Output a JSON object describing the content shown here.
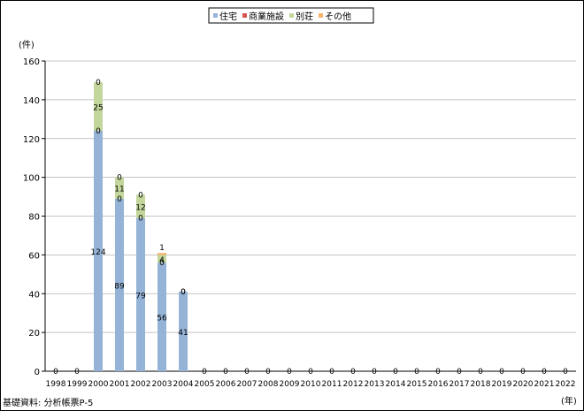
{
  "chart_data": {
    "type": "bar",
    "stacked": true,
    "categories": [
      "1998",
      "1999",
      "2000",
      "2001",
      "2002",
      "2003",
      "2004",
      "2005",
      "2006",
      "2007",
      "2008",
      "2009",
      "2010",
      "2011",
      "2012",
      "2013",
      "2014",
      "2015",
      "2016",
      "2017",
      "2018",
      "2019",
      "2020",
      "2021",
      "2022"
    ],
    "series": [
      {
        "name": "住宅",
        "color": "#95b3d7",
        "values": [
          0,
          0,
          124,
          89,
          79,
          56,
          41,
          0,
          0,
          0,
          0,
          0,
          0,
          0,
          0,
          0,
          0,
          0,
          0,
          0,
          0,
          0,
          0,
          0,
          0
        ]
      },
      {
        "name": "商業施設",
        "color": "#d9534f",
        "values": [
          0,
          0,
          0,
          0,
          0,
          0,
          0,
          0,
          0,
          0,
          0,
          0,
          0,
          0,
          0,
          0,
          0,
          0,
          0,
          0,
          0,
          0,
          0,
          0,
          0
        ]
      },
      {
        "name": "別荘",
        "color": "#c3d69b",
        "values": [
          0,
          0,
          25,
          11,
          12,
          4,
          0,
          0,
          0,
          0,
          0,
          0,
          0,
          0,
          0,
          0,
          0,
          0,
          0,
          0,
          0,
          0,
          0,
          0,
          0
        ]
      },
      {
        "name": "その他",
        "color": "#f7b46b",
        "values": [
          0,
          0,
          0,
          0,
          0,
          1,
          0,
          0,
          0,
          0,
          0,
          0,
          0,
          0,
          0,
          0,
          0,
          0,
          0,
          0,
          0,
          0,
          0,
          0,
          0
        ]
      }
    ],
    "ylim": [
      0,
      160
    ],
    "yticks": [
      0,
      20,
      40,
      60,
      80,
      100,
      120,
      140,
      160
    ],
    "ylabel": "(件)",
    "xlabel": "(年)",
    "legend": "top-center",
    "grid": true
  },
  "footer": {
    "source": "基礎資料: 分析帳票P-5"
  }
}
